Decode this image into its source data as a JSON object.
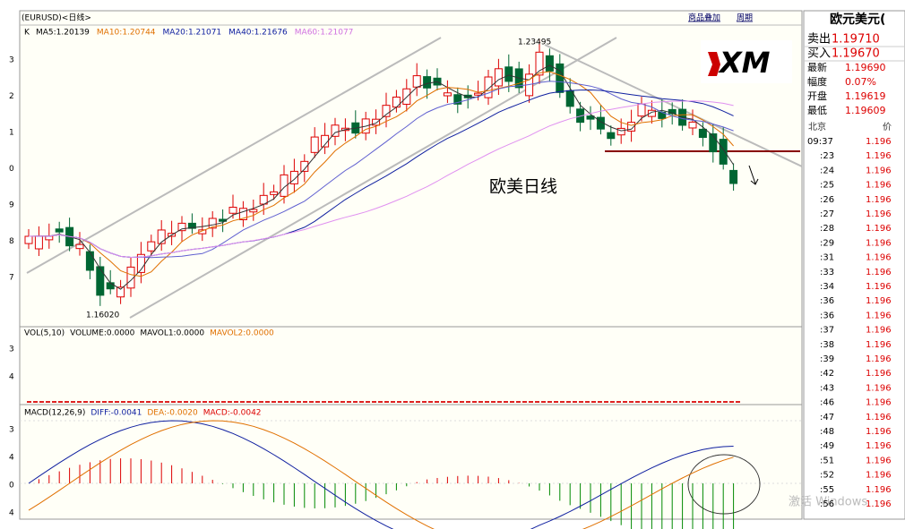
{
  "header": {
    "symbol": "(EURUSD)<日线>",
    "links": [
      "商品叠加",
      "周期"
    ]
  },
  "main_pane": {
    "label": "K",
    "indicators": [
      "MA5:1.20139",
      "MA10:1.20744",
      "MA20:1.21071",
      "MA40:1.21676",
      "MA60:1.21077"
    ],
    "y_labels": [
      "3",
      "2",
      "1",
      "0",
      "9",
      "8",
      "7"
    ],
    "high_label": "1.23495",
    "low_label": "1.16020",
    "caption": "欧美日线"
  },
  "volume_pane": {
    "indicators": [
      "VOL(5,10)",
      "VOLUME:0.0000",
      "MAVOL1:0.0000",
      "MAVOL2:0.0000"
    ],
    "y_labels": [
      "3",
      "4"
    ]
  },
  "macd_pane": {
    "indicators": [
      "MACD(12,26,9)",
      "DIFF:-0.0041",
      "DEA:-0.0020",
      "MACD:-0.0042"
    ],
    "y_labels": [
      "3",
      "4",
      "0",
      "4"
    ]
  },
  "logo": "XM",
  "quote": {
    "title": "欧元美元(",
    "rows": [
      [
        "卖出",
        "1.19710"
      ],
      [
        "买入",
        "1.19670"
      ],
      [
        "最新",
        "1.19690"
      ],
      [
        "幅度",
        "0.07%"
      ],
      [
        "开盘",
        "1.19619"
      ],
      [
        "最低",
        "1.19609"
      ]
    ],
    "tick_header": [
      "北京",
      "价"
    ],
    "ticks": [
      [
        "09:37",
        "1.196"
      ],
      [
        ":23",
        "1.196"
      ],
      [
        ":24",
        "1.196"
      ],
      [
        ":25",
        "1.196"
      ],
      [
        ":26",
        "1.196"
      ],
      [
        ":27",
        "1.196"
      ],
      [
        ":28",
        "1.196"
      ],
      [
        ":29",
        "1.196"
      ],
      [
        ":31",
        "1.196"
      ],
      [
        ":33",
        "1.196"
      ],
      [
        ":34",
        "1.196"
      ],
      [
        ":36",
        "1.196"
      ],
      [
        ":36",
        "1.196"
      ],
      [
        ":37",
        "1.196"
      ],
      [
        ":38",
        "1.196"
      ],
      [
        ":39",
        "1.196"
      ],
      [
        ":42",
        "1.196"
      ],
      [
        ":43",
        "1.196"
      ],
      [
        ":46",
        "1.196"
      ],
      [
        ":47",
        "1.196"
      ],
      [
        ":48",
        "1.196"
      ],
      [
        ":49",
        "1.196"
      ],
      [
        ":51",
        "1.196"
      ],
      [
        ":52",
        "1.196"
      ],
      [
        ":55",
        "1.196"
      ],
      [
        ":56",
        "1.196"
      ]
    ]
  },
  "watermark": "激活 Windows"
}
